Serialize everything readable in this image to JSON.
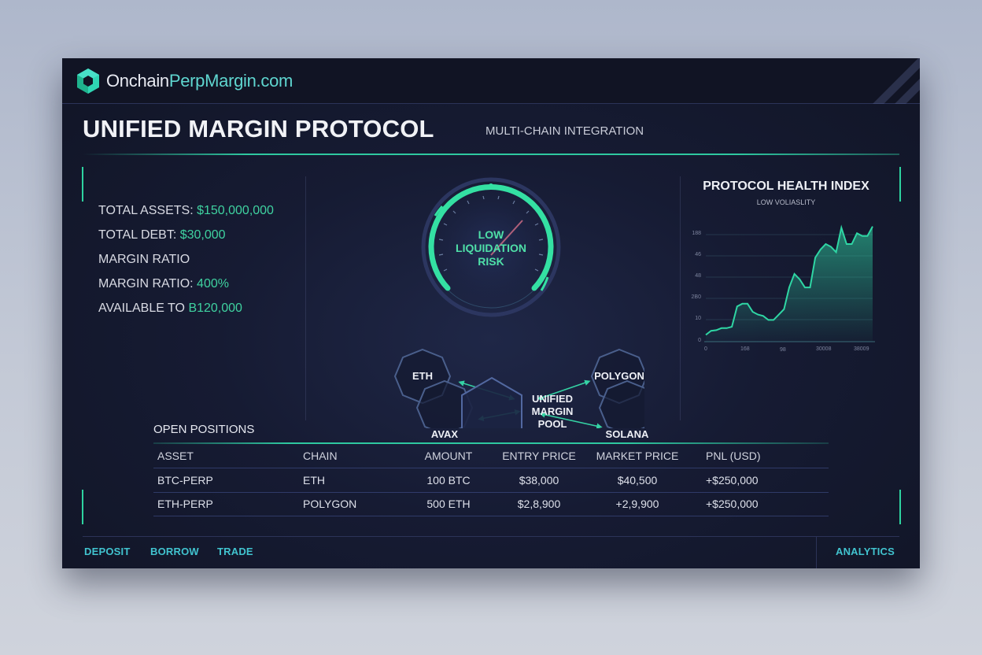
{
  "header": {
    "brand_prefix": "Onchain",
    "brand_accent": "PerpMargin.com",
    "logo_icon": "hexagon-cube-icon"
  },
  "page": {
    "title": "UNIFIED MARGIN PROTOCOL",
    "subtitle": "MULTI-CHAIN INTEGRATION"
  },
  "stats": [
    {
      "label": "TOTAL ASSETS: ",
      "value": "$150,000,000"
    },
    {
      "label": "TOTAL DEBT: ",
      "value": "$30,000"
    },
    {
      "label": "MARGIN RATIO",
      "value": ""
    },
    {
      "label": "MARGIN RATIO: ",
      "value": "400%"
    },
    {
      "label": "AVAILABLE TO ",
      "value": "B120,000"
    }
  ],
  "gauge": {
    "line1": "LOW",
    "line2": "LIQUIDATION",
    "line3": "RISK"
  },
  "network": {
    "hub": [
      "UNIFIED",
      "MARGIN",
      "POOL"
    ],
    "nodes": [
      "ETH",
      "AVAX",
      "POLYGON",
      "SOLANA"
    ]
  },
  "health": {
    "title": "PROTOCOL HEALTH INDEX",
    "subtitle": "LOW VOLIASLITY"
  },
  "chart_data": {
    "type": "area",
    "title": "PROTOCOL HEALTH INDEX",
    "subtitle": "LOW VOLIASLITY",
    "xlabel": "",
    "ylabel": "",
    "y_tick_labels": [
      "0",
      "10",
      "2B0",
      "48",
      "46",
      "188"
    ],
    "x_tick_labels": [
      "0",
      "168",
      "9\u00028",
      "30008",
      "38009"
    ],
    "grid": true,
    "x": [
      0,
      1,
      2,
      3,
      4,
      5,
      6,
      7,
      8,
      9,
      10,
      11,
      12,
      13,
      14,
      15,
      16,
      17,
      18,
      19,
      20,
      21,
      22,
      23,
      24,
      25,
      26,
      27,
      28,
      29,
      30,
      31,
      32
    ],
    "values": [
      5,
      8,
      8.5,
      10,
      10,
      11,
      26,
      28,
      28,
      22,
      20,
      19,
      16,
      16,
      20,
      24,
      40,
      50,
      46,
      40,
      40,
      62,
      68,
      72,
      70,
      66,
      84,
      72,
      72,
      80,
      78,
      78,
      85
    ],
    "series": [
      {
        "name": "Health Index",
        "color": "#2fd6a4"
      }
    ]
  },
  "positions": {
    "title": "OPEN POSITIONS",
    "columns": [
      "ASSET",
      "CHAIN",
      "AMOUNT",
      "ENTRY PRICE",
      "MARKET PRICE",
      "PNL (USD)"
    ],
    "rows": [
      [
        "BTC-PERP",
        "ETH",
        "100 BTC",
        "$38,000",
        "$40,500",
        "+$250,000"
      ],
      [
        "ETH-PERP",
        "POLYGON",
        "500 ETH",
        "$2,8,900",
        "+2,9,900",
        "+$250,000"
      ]
    ]
  },
  "footer": {
    "nav": [
      "DEPOSIT",
      "BORROW",
      "TRADE"
    ],
    "right": "ANALYTICS"
  },
  "colors": {
    "accent_green": "#2ed3a0",
    "accent_cyan": "#41c3cf",
    "background": "#161b33"
  }
}
